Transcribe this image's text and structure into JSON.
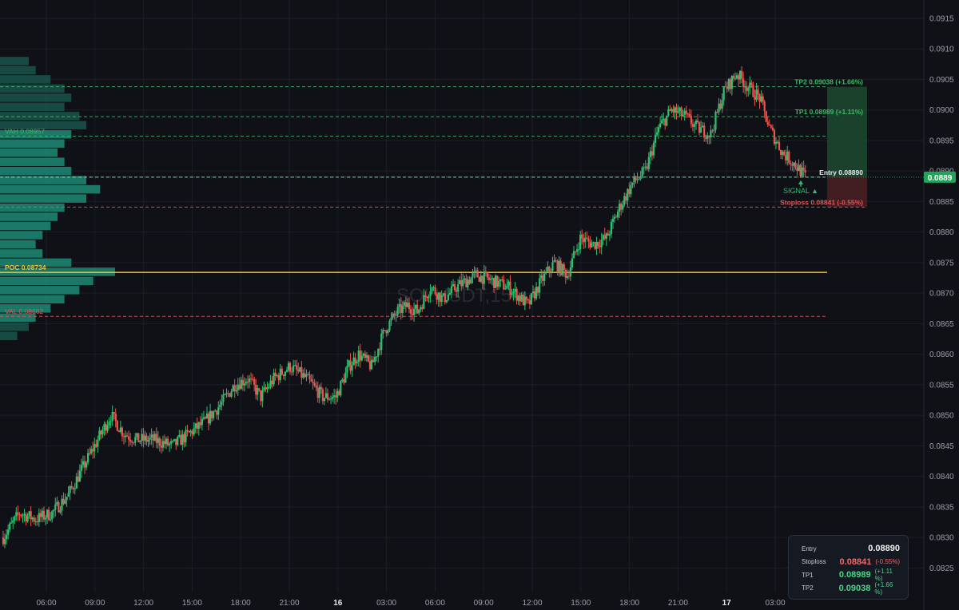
{
  "chart_data": {
    "type": "candlestick",
    "watermark": "SOLUSDT,15m",
    "ylim": [
      0.0821,
      0.0918
    ],
    "y_ticks": [
      "0.0915",
      "0.0910",
      "0.0905",
      "0.0900",
      "0.0895",
      "0.0890",
      "0.0885",
      "0.0880",
      "0.0875",
      "0.0870",
      "0.0865",
      "0.0860",
      "0.0855",
      "0.0850",
      "0.0845",
      "0.0840",
      "0.0835",
      "0.0830",
      "0.0825"
    ],
    "x_ticks": [
      {
        "label": "06:00",
        "bold": false
      },
      {
        "label": "09:00",
        "bold": false
      },
      {
        "label": "12:00",
        "bold": false
      },
      {
        "label": "15:00",
        "bold": false
      },
      {
        "label": "18:00",
        "bold": false
      },
      {
        "label": "21:00",
        "bold": false
      },
      {
        "label": "16",
        "bold": true
      },
      {
        "label": "03:00",
        "bold": false
      },
      {
        "label": "06:00",
        "bold": false
      },
      {
        "label": "09:00",
        "bold": false
      },
      {
        "label": "12:00",
        "bold": false
      },
      {
        "label": "15:00",
        "bold": false
      },
      {
        "label": "18:00",
        "bold": false
      },
      {
        "label": "21:00",
        "bold": false
      },
      {
        "label": "17",
        "bold": true
      },
      {
        "label": "03:00",
        "bold": false
      }
    ],
    "current_price": "0.0889",
    "levels": {
      "tp2": {
        "label": "TP2 0.09038 (+1.66%)",
        "value": 0.09038,
        "color": "#3fb86b"
      },
      "tp1": {
        "label": "TP1 0.08989 (+1.11%)",
        "value": 0.08989,
        "color": "#3fb86b"
      },
      "vah": {
        "label": "VAH 0.08957",
        "value": 0.08957,
        "color": "#3fb86b"
      },
      "entry": {
        "label": "Entry 0.08890",
        "value": 0.0889,
        "color": "#9fe3c2"
      },
      "stoploss": {
        "label": "Stoploss 0.08841 (-0.55%)",
        "value": 0.08841,
        "color": "#e0575b"
      },
      "poc": {
        "label": "POC 0.08734",
        "value": 0.08734,
        "color": "#f2c230"
      },
      "val": {
        "label": "VAL 0.08662",
        "value": 0.08662,
        "color": "#e0575b"
      }
    },
    "signal_label": "SIGNAL ▲",
    "colors": {
      "up": "#26a69a",
      "up_bright": "#2fbf71",
      "down": "#ef5350",
      "profile": "#1f8a70",
      "grid": "#1b1f27"
    },
    "candles_anchors": [
      [
        0,
        0.083
      ],
      [
        10,
        0.0834
      ],
      [
        20,
        0.0833
      ],
      [
        30,
        0.0834
      ],
      [
        40,
        0.0837
      ],
      [
        50,
        0.0842
      ],
      [
        58,
        0.0846
      ],
      [
        66,
        0.085
      ],
      [
        74,
        0.0847
      ],
      [
        82,
        0.0846
      ],
      [
        92,
        0.0846
      ],
      [
        104,
        0.0845
      ],
      [
        114,
        0.0847
      ],
      [
        124,
        0.0849
      ],
      [
        134,
        0.0852
      ],
      [
        142,
        0.0855
      ],
      [
        150,
        0.0856
      ],
      [
        158,
        0.0853
      ],
      [
        166,
        0.0856
      ],
      [
        176,
        0.0858
      ],
      [
        186,
        0.0856
      ],
      [
        196,
        0.0853
      ],
      [
        204,
        0.0853
      ],
      [
        212,
        0.0858
      ],
      [
        218,
        0.086
      ],
      [
        226,
        0.0858
      ],
      [
        234,
        0.0864
      ],
      [
        242,
        0.0867
      ],
      [
        248,
        0.0868
      ],
      [
        254,
        0.0867
      ],
      [
        262,
        0.0871
      ],
      [
        270,
        0.0869
      ],
      [
        278,
        0.0871
      ],
      [
        290,
        0.0873
      ],
      [
        300,
        0.0872
      ],
      [
        310,
        0.0871
      ],
      [
        322,
        0.0868
      ],
      [
        330,
        0.0872
      ],
      [
        338,
        0.0875
      ],
      [
        346,
        0.0873
      ],
      [
        354,
        0.0879
      ],
      [
        362,
        0.0878
      ],
      [
        370,
        0.0879
      ],
      [
        378,
        0.0884
      ],
      [
        386,
        0.0888
      ],
      [
        394,
        0.089
      ],
      [
        402,
        0.0897
      ],
      [
        410,
        0.09
      ],
      [
        418,
        0.0899
      ],
      [
        426,
        0.0897
      ],
      [
        434,
        0.0896
      ],
      [
        442,
        0.0903
      ],
      [
        450,
        0.0906
      ],
      [
        456,
        0.0904
      ],
      [
        464,
        0.0902
      ],
      [
        470,
        0.0897
      ],
      [
        478,
        0.0893
      ],
      [
        486,
        0.0891
      ],
      [
        492,
        0.0889
      ]
    ],
    "profile_rows": [
      [
        0.0908,
        0.25
      ],
      [
        0.09065,
        0.31
      ],
      [
        0.0905,
        0.44
      ],
      [
        0.09035,
        0.56
      ],
      [
        0.0902,
        0.62
      ],
      [
        0.09005,
        0.56
      ],
      [
        0.0899,
        0.69
      ],
      [
        0.08975,
        0.75
      ],
      [
        0.0896,
        0.62
      ],
      [
        0.08945,
        0.56
      ],
      [
        0.0893,
        0.5
      ],
      [
        0.08915,
        0.56
      ],
      [
        0.089,
        0.62
      ],
      [
        0.08885,
        0.75
      ],
      [
        0.0887,
        0.87
      ],
      [
        0.08855,
        0.75
      ],
      [
        0.0884,
        0.56
      ],
      [
        0.08825,
        0.5
      ],
      [
        0.0881,
        0.44
      ],
      [
        0.08795,
        0.37
      ],
      [
        0.0878,
        0.31
      ],
      [
        0.08765,
        0.37
      ],
      [
        0.0875,
        0.62
      ],
      [
        0.08735,
        1.0
      ],
      [
        0.0872,
        0.81
      ],
      [
        0.08705,
        0.69
      ],
      [
        0.0869,
        0.56
      ],
      [
        0.08675,
        0.44
      ],
      [
        0.0866,
        0.31
      ],
      [
        0.08645,
        0.25
      ],
      [
        0.0863,
        0.15
      ]
    ]
  },
  "info_panel": {
    "rows": [
      {
        "key": "Entry",
        "value": "0.08890",
        "pct": ""
      },
      {
        "key": "Stoploss",
        "value": "0.08841",
        "pct": "(-0.55%)"
      },
      {
        "key": "TP1",
        "value": "0.08989",
        "pct": "(+1.11 %)"
      },
      {
        "key": "TP2",
        "value": "0.09038",
        "pct": "(+1.66 %)"
      }
    ]
  }
}
